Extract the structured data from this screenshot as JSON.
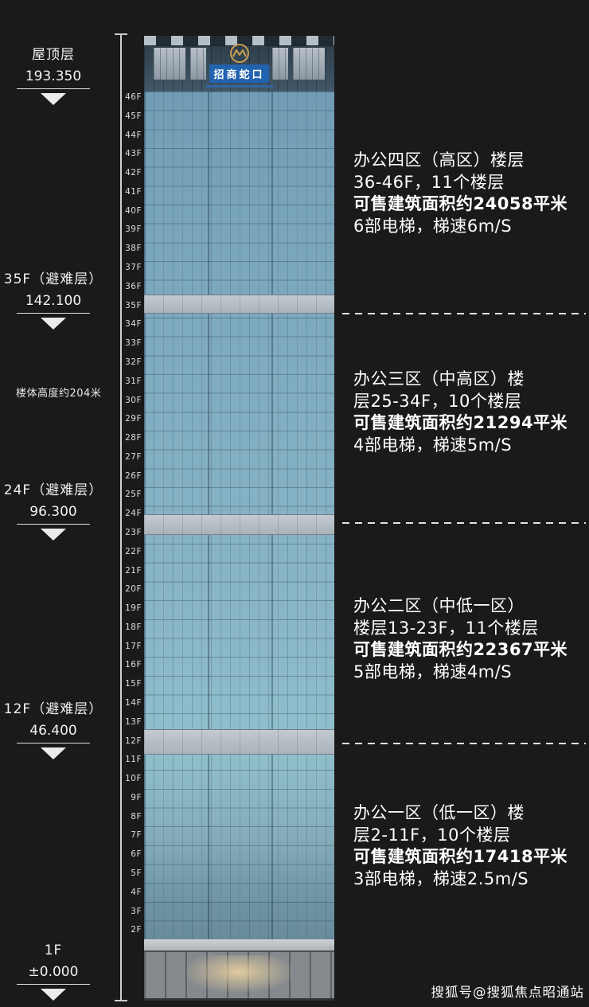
{
  "page": {
    "bg_color": "#1a1a1a",
    "watermark": "搜狐号@搜狐焦点昭通站"
  },
  "building": {
    "logo_text": "招商蛇口"
  },
  "height_note": "楼体高度约204米",
  "left_markers": [
    {
      "name": "屋顶层",
      "elevation": "193.350"
    },
    {
      "name": "35F（避难层）",
      "elevation": "142.100"
    },
    {
      "name": "24F（避难层）",
      "elevation": "96.300"
    },
    {
      "name": "12F（避难层）",
      "elevation": "46.400"
    },
    {
      "name": "1F",
      "elevation": "±0.000"
    }
  ],
  "floors": [
    "46F",
    "45F",
    "44F",
    "43F",
    "42F",
    "41F",
    "40F",
    "39F",
    "38F",
    "37F",
    "36F",
    "35F",
    "34F",
    "33F",
    "32F",
    "31F",
    "30F",
    "29F",
    "28F",
    "27F",
    "26F",
    "25F",
    "24F",
    "23F",
    "22F",
    "21F",
    "20F",
    "19F",
    "18F",
    "17F",
    "16F",
    "15F",
    "14F",
    "13F",
    "12F",
    "11F",
    "10F",
    "9F",
    "8F",
    "7F",
    "6F",
    "5F",
    "4F",
    "3F",
    "2F"
  ],
  "zones": [
    {
      "line1": "办公四区（高区）楼层",
      "line2": "36-46F，11个楼层",
      "line3": "可售建筑面积约24058平米",
      "line4": "6部电梯，梯速6m/S"
    },
    {
      "line1": "办公三区（中高区）楼",
      "line2": "层25-34F，10个楼层",
      "line3": "可售建筑面积约21294平米",
      "line4": "4部电梯，梯速5m/S"
    },
    {
      "line1": "办公二区（中低一区）",
      "line2": "楼层13-23F，11个楼层",
      "line3": "可售建筑面积约22367平米",
      "line4": "5部电梯，梯速4m/S"
    },
    {
      "line1": "办公一区（低一区）楼",
      "line2": "层2-11F，10个楼层",
      "line3": "可售建筑面积约17418平米",
      "line4": "3部电梯，梯速2.5m/S"
    }
  ]
}
